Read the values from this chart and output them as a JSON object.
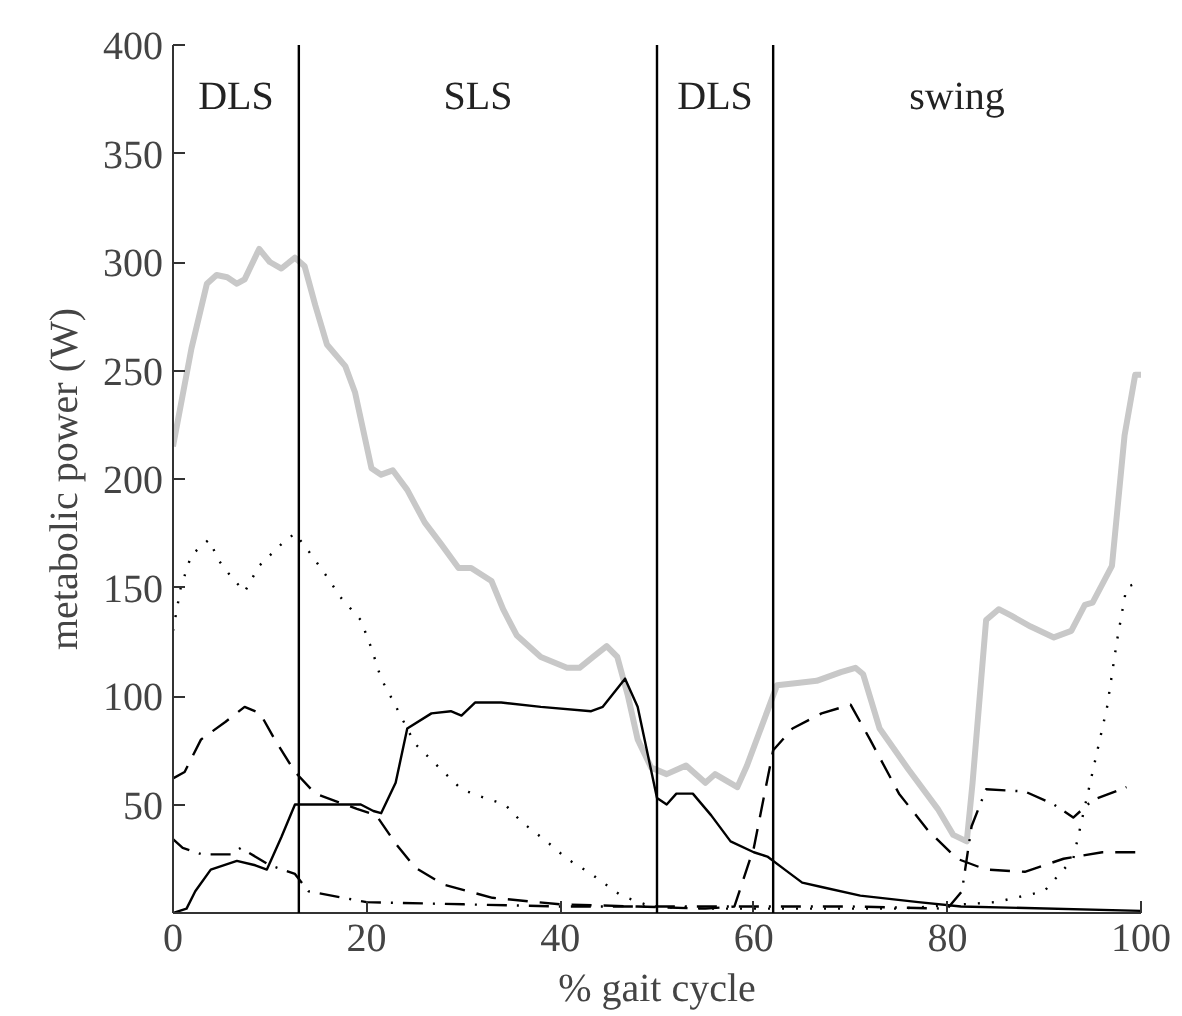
{
  "chart_data": {
    "type": "line",
    "xlabel": "% gait cycle",
    "ylabel": "metabolic power (W)",
    "xlim": [
      0,
      100
    ],
    "ylim": [
      0,
      400
    ],
    "xticks": [
      0,
      20,
      40,
      60,
      80,
      100
    ],
    "yticks": [
      50,
      100,
      150,
      200,
      250,
      300,
      350,
      400
    ],
    "grid": false,
    "marker": "none",
    "series": [
      {
        "color": "#c8c8c8",
        "line_style": "solid",
        "x": [
          0,
          1.9,
          3.5,
          4.5,
          5.6,
          6.6,
          7.4,
          8.9,
          10,
          11.2,
          12.6,
          13.6,
          14.7,
          15.9,
          17.8,
          18.8,
          20.5,
          21.5,
          22.7,
          24.2,
          26,
          27.7,
          29.5,
          30.8,
          32.9,
          34.1,
          35.5,
          38,
          40.7,
          42,
          43.4,
          44.8,
          45.9,
          47,
          48,
          49.4,
          51,
          53,
          55,
          56,
          58.3,
          59.3,
          62.4,
          64.5,
          66.5,
          69,
          70.5,
          71.3,
          73,
          76,
          79,
          80.6,
          82,
          82.6,
          84,
          85.3,
          86.6,
          88.6,
          91,
          92.8,
          94.2,
          95,
          97,
          98.3,
          99.4,
          100
        ],
        "values": [
          215,
          260,
          290,
          294,
          293,
          290,
          292,
          306,
          300,
          297,
          302,
          298,
          280,
          262,
          252,
          240,
          205,
          202,
          204,
          195,
          180,
          170,
          159,
          159,
          153,
          140,
          128,
          118,
          113,
          113,
          118,
          123,
          118,
          100,
          80,
          67,
          64,
          68,
          60,
          64,
          58,
          68,
          105,
          106,
          107,
          111,
          113,
          110,
          85,
          66,
          48,
          36,
          33,
          60,
          135,
          140,
          137,
          132,
          127,
          130,
          142,
          143,
          160,
          220,
          248,
          248
        ]
      },
      {
        "color": "#000000",
        "line_style": "solid",
        "x": [
          0,
          1.4,
          2.3,
          3.9,
          6.6,
          8.5,
          9.7,
          11.2,
          12.6,
          13.8,
          19.4,
          20.7,
          21.5,
          23,
          24.2,
          26.7,
          28.7,
          29.8,
          31.2,
          33.9,
          38,
          43.2,
          44.4,
          46.7,
          48,
          50,
          51,
          52,
          53.7,
          55.6,
          57.6,
          60,
          61.4,
          63.2,
          65,
          67,
          71,
          77,
          81.4,
          100
        ],
        "values": [
          0,
          2,
          10,
          20,
          24,
          22,
          20,
          35,
          50,
          50,
          50,
          47,
          46,
          60,
          85,
          92,
          93,
          91,
          97,
          97,
          95,
          93,
          95,
          108,
          95,
          53,
          50,
          55,
          55,
          45,
          33,
          28,
          26,
          20,
          14,
          12,
          8,
          5,
          3,
          1
        ]
      },
      {
        "color": "#000000",
        "line_style": "dotted",
        "x": [
          0,
          0.8,
          1.9,
          3.7,
          4.8,
          6,
          7.4,
          8.9,
          11.2,
          12.6,
          14.3,
          15.9,
          17.4,
          19.4,
          20.5,
          21.5,
          22.7,
          25,
          27.5,
          29.8,
          32.2,
          34.3,
          36,
          38.6,
          40.7,
          43.2,
          46.3,
          49.4,
          55,
          65,
          75,
          85,
          90,
          93,
          94,
          95,
          96.5,
          97.5,
          98.5,
          100
        ],
        "values": [
          130,
          150,
          165,
          172,
          162,
          155,
          148,
          160,
          170,
          175,
          165,
          155,
          145,
          135,
          122,
          108,
          98,
          78,
          67,
          57,
          53,
          50,
          42,
          33,
          25,
          18,
          8,
          3,
          2,
          2,
          2,
          5,
          10,
          25,
          45,
          65,
          95,
          125,
          150,
          153
        ]
      },
      {
        "color": "#000000",
        "line_style": "dashed",
        "x": [
          0,
          1.2,
          2.9,
          5.4,
          7.4,
          9,
          10.5,
          12.6,
          14.7,
          19,
          21,
          23,
          25,
          28,
          33,
          40,
          48,
          55,
          58,
          60,
          62,
          64,
          67,
          70,
          72,
          75,
          78,
          81,
          84,
          88,
          92,
          96,
          100
        ],
        "values": [
          62,
          65,
          80,
          88,
          95,
          92,
          80,
          65,
          55,
          48,
          45,
          32,
          21,
          13,
          7,
          4,
          3,
          2,
          3,
          30,
          75,
          85,
          92,
          96,
          80,
          55,
          38,
          25,
          20,
          19,
          25,
          28,
          28
        ]
      },
      {
        "color": "#000000",
        "line_style": "dashdot",
        "x": [
          0,
          1,
          3,
          6,
          7,
          10,
          12.6,
          14,
          20,
          30,
          40,
          50,
          60,
          70,
          80,
          81.5,
          82.5,
          84,
          88,
          91,
          93,
          95,
          98.5
        ],
        "values": [
          34,
          30,
          27,
          27,
          30,
          22,
          18,
          10,
          5,
          4,
          3,
          3,
          3,
          3,
          2,
          10,
          40,
          57,
          56,
          50,
          44,
          52,
          58
        ]
      }
    ],
    "ref_lines": [
      {
        "axis": "x",
        "value": 13,
        "color": "#000000"
      },
      {
        "axis": "x",
        "value": 50,
        "color": "#000000"
      },
      {
        "axis": "x",
        "value": 62,
        "color": "#000000"
      }
    ],
    "annotations": [
      "DLS",
      "SLS",
      "DLS",
      "swing"
    ]
  }
}
